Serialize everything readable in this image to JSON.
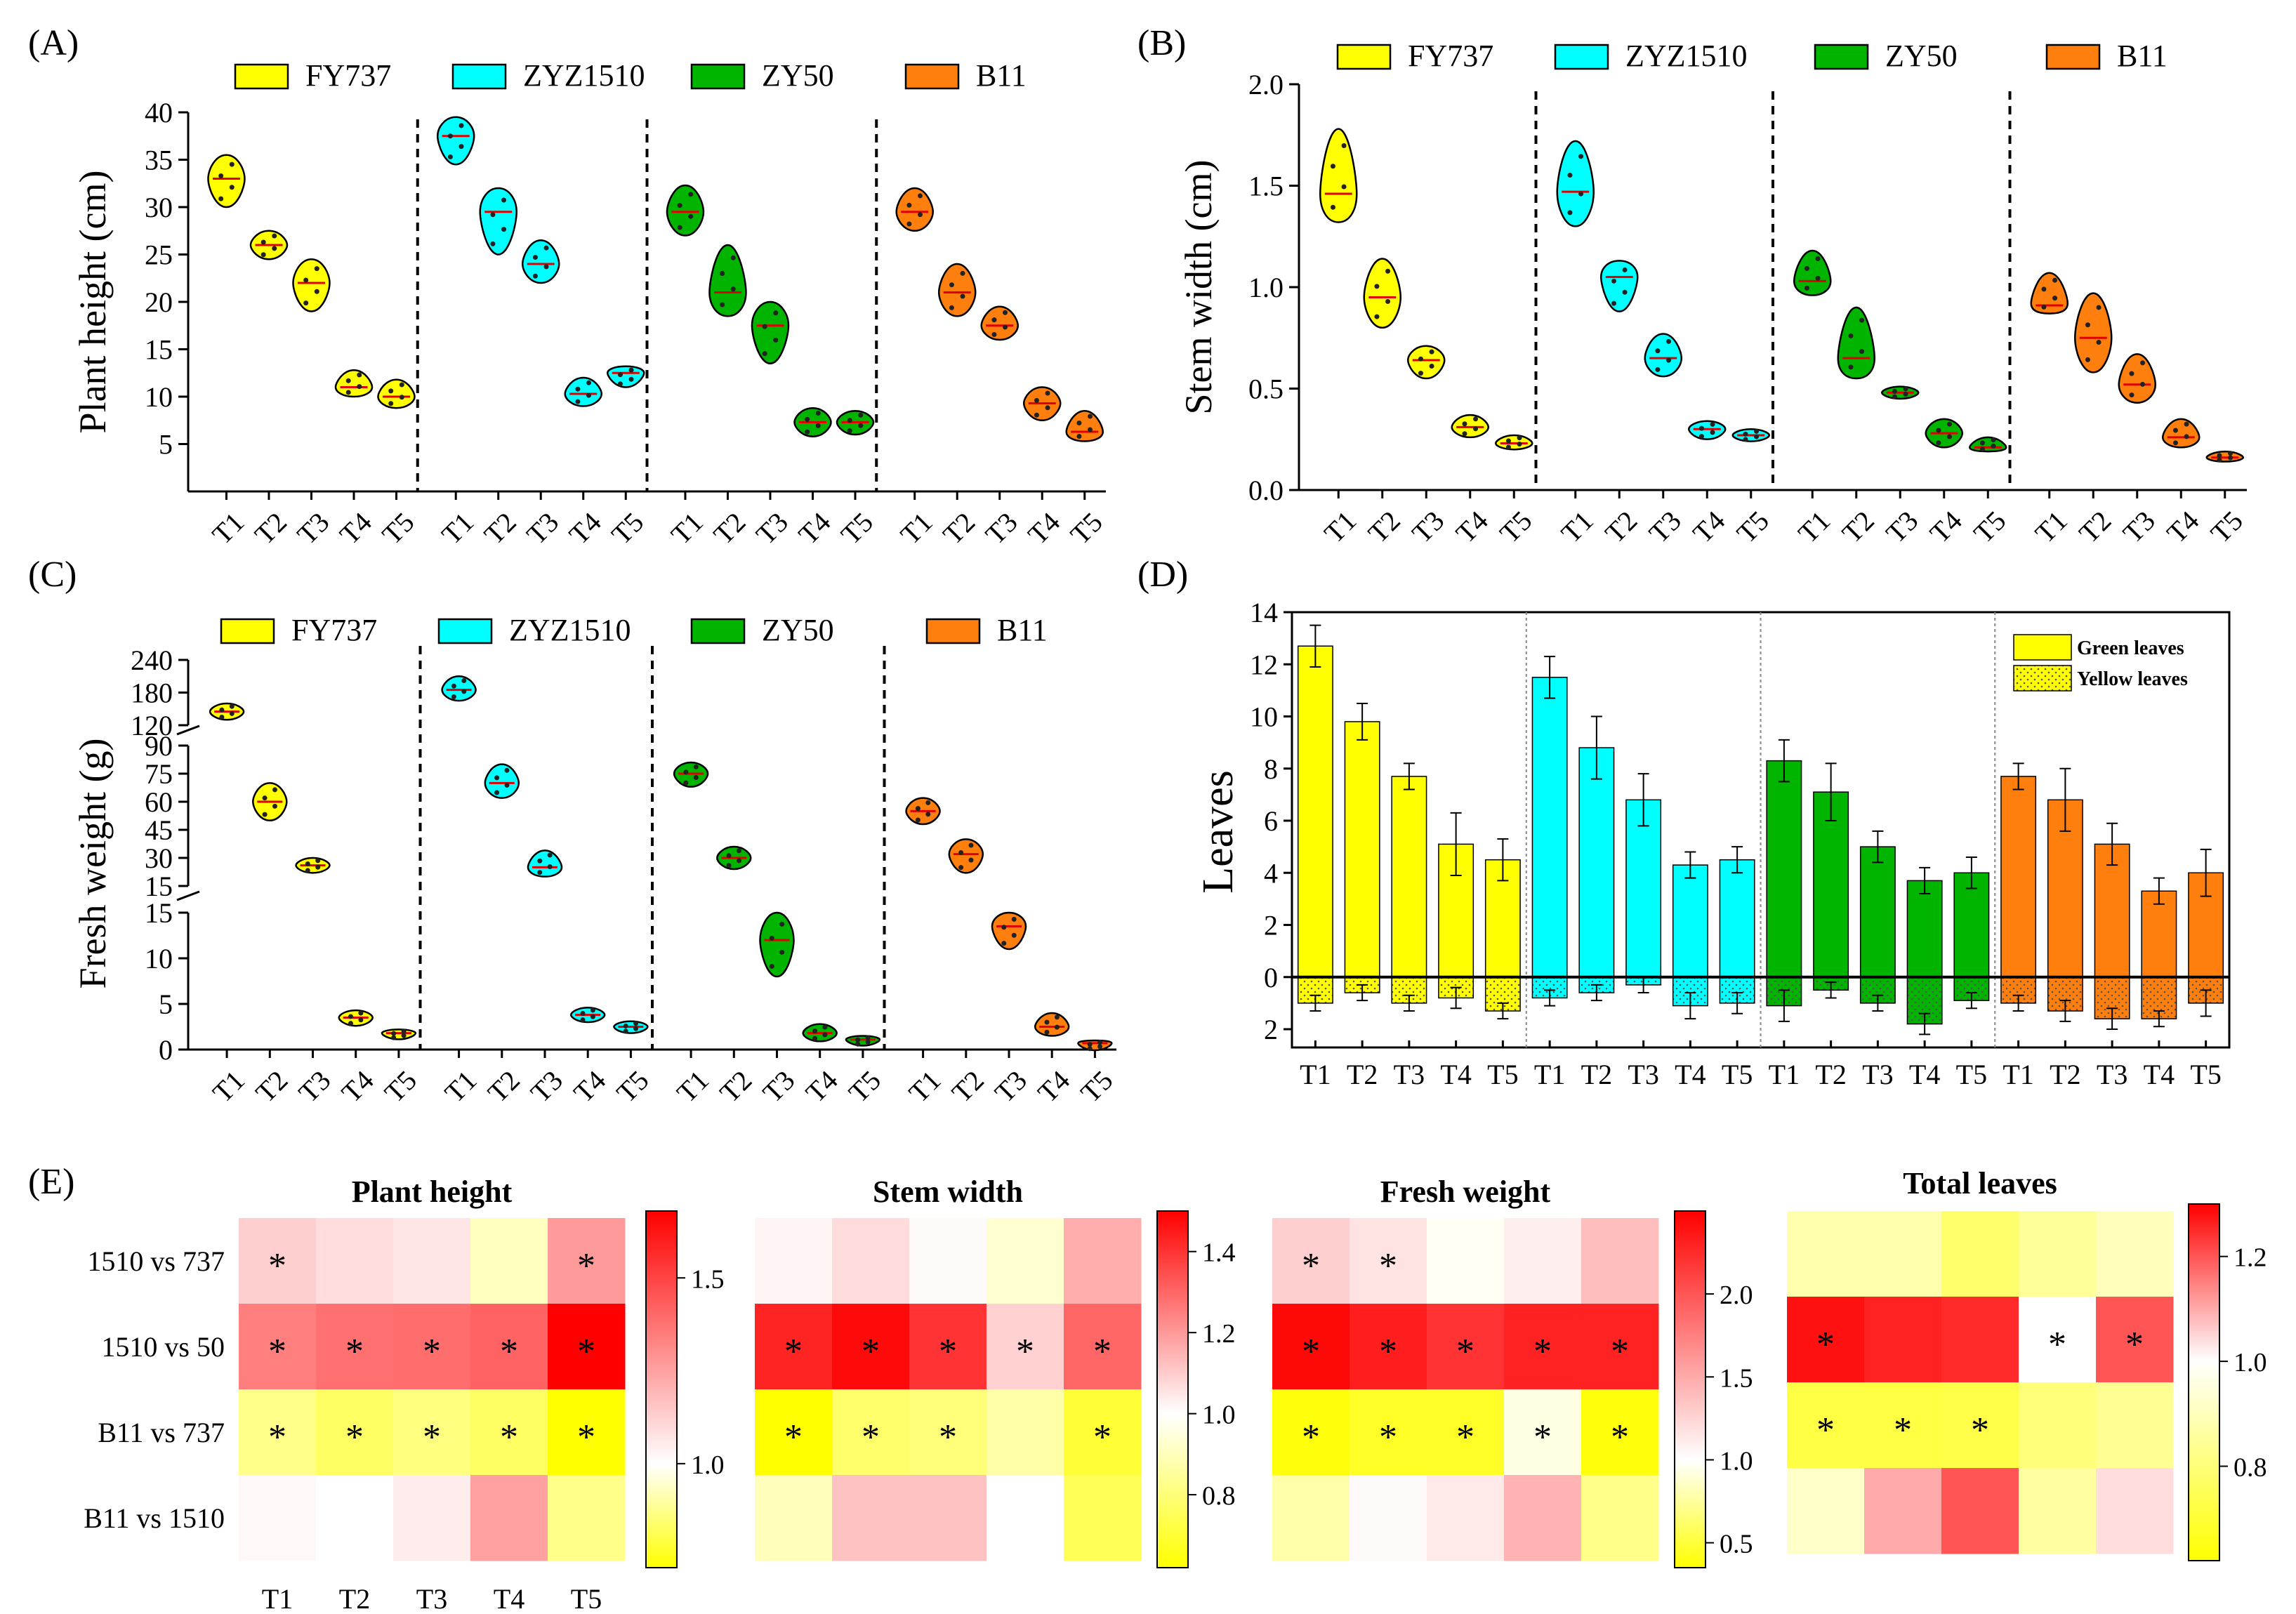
{
  "panel_labels": [
    "(A)",
    "(B)",
    "(C)",
    "(D)",
    "(E)"
  ],
  "colors": {
    "FY737": "#FFFF00",
    "ZYZ1510": "#00FFFF",
    "ZY50": "#00B400",
    "B11": "#FF7F0E",
    "heat_low": "#FFFF00",
    "heat_mid": "#FFFFFF",
    "heat_high": "#FF0000"
  },
  "chart_data": [
    {
      "id": "A",
      "type": "violin",
      "ylabel": "Plant height (cm)",
      "ylim": [
        0,
        40
      ],
      "yticks": [
        5,
        10,
        15,
        20,
        25,
        30,
        35,
        40
      ],
      "treatments": [
        "T1",
        "T2",
        "T3",
        "T4",
        "T5"
      ],
      "legend": [
        "FY737",
        "ZYZ1510",
        "ZY50",
        "B11"
      ],
      "series": [
        {
          "name": "FY737",
          "medians": [
            33,
            26,
            22,
            11,
            10
          ],
          "mins": [
            30,
            24.5,
            19,
            10,
            8.8
          ],
          "maxs": [
            35.5,
            27.5,
            24.5,
            12.8,
            11.8
          ]
        },
        {
          "name": "ZYZ1510",
          "medians": [
            37.5,
            29.5,
            24,
            10.3,
            12.5
          ],
          "mins": [
            34.5,
            25,
            22,
            9,
            11
          ],
          "maxs": [
            39.5,
            32,
            26.5,
            12,
            13.2
          ]
        },
        {
          "name": "ZY50",
          "medians": [
            29.5,
            21,
            17.5,
            7.3,
            7.3
          ],
          "mins": [
            27,
            18.5,
            13.5,
            5.8,
            6
          ],
          "maxs": [
            32.3,
            26,
            20,
            8.8,
            8.5
          ]
        },
        {
          "name": "B11",
          "medians": [
            29.5,
            21,
            17.5,
            9.3,
            6.3
          ],
          "mins": [
            27.5,
            18.5,
            16,
            7.5,
            5.3
          ],
          "maxs": [
            32,
            24,
            19.5,
            11,
            8.5
          ]
        }
      ]
    },
    {
      "id": "B",
      "type": "violin",
      "ylabel": "Stem width (cm)",
      "ylim": [
        0,
        2
      ],
      "yticks": [
        "0.0",
        "0.5",
        "1.0",
        "1.5",
        "2.0"
      ],
      "treatments": [
        "T1",
        "T2",
        "T3",
        "T4",
        "T5"
      ],
      "legend": [
        "FY737",
        "ZYZ1510",
        "ZY50",
        "B11"
      ],
      "series": [
        {
          "name": "FY737",
          "medians": [
            1.46,
            0.95,
            0.64,
            0.31,
            0.23
          ],
          "mins": [
            1.32,
            0.8,
            0.55,
            0.26,
            0.2
          ],
          "maxs": [
            1.78,
            1.14,
            0.71,
            0.37,
            0.27
          ]
        },
        {
          "name": "ZYZ1510",
          "medians": [
            1.47,
            1.05,
            0.65,
            0.3,
            0.27
          ],
          "mins": [
            1.3,
            0.88,
            0.56,
            0.25,
            0.24
          ],
          "maxs": [
            1.72,
            1.13,
            0.77,
            0.34,
            0.3
          ]
        },
        {
          "name": "ZY50",
          "medians": [
            1.03,
            0.65,
            0.48,
            0.28,
            0.21
          ],
          "mins": [
            0.96,
            0.55,
            0.45,
            0.21,
            0.19
          ],
          "maxs": [
            1.18,
            0.9,
            0.51,
            0.35,
            0.26
          ]
        },
        {
          "name": "B11",
          "medians": [
            0.91,
            0.75,
            0.52,
            0.26,
            0.16
          ],
          "mins": [
            0.87,
            0.58,
            0.43,
            0.21,
            0.14
          ],
          "maxs": [
            1.07,
            0.97,
            0.67,
            0.35,
            0.19
          ]
        }
      ]
    },
    {
      "id": "C",
      "type": "violin",
      "ylabel": "Fresh weight (g)",
      "broken_axis": true,
      "ylim_segments": [
        [
          0,
          15
        ],
        [
          15,
          90
        ],
        [
          120,
          240
        ]
      ],
      "yticks_segments": [
        [
          0,
          5,
          10,
          15
        ],
        [
          15,
          30,
          45,
          60,
          75,
          90
        ],
        [
          120,
          180,
          240
        ]
      ],
      "treatments": [
        "T1",
        "T2",
        "T3",
        "T4",
        "T5"
      ],
      "legend": [
        "FY737",
        "ZYZ1510",
        "ZY50",
        "B11"
      ],
      "series": [
        {
          "name": "FY737",
          "medians": [
            145,
            60,
            26,
            3.5,
            1.8
          ],
          "mins": [
            130,
            50,
            22,
            2.6,
            1.4
          ],
          "maxs": [
            160,
            70,
            30,
            4.3,
            2.2
          ]
        },
        {
          "name": "ZYZ1510",
          "medians": [
            185,
            70,
            25,
            3.8,
            2.5
          ],
          "mins": [
            165,
            62,
            20,
            3,
            1.8
          ],
          "maxs": [
            210,
            80,
            34,
            4.6,
            3.1
          ]
        },
        {
          "name": "ZY50",
          "medians": [
            75,
            30,
            12,
            1.8,
            1.1
          ],
          "mins": [
            68,
            24,
            8,
            0.9,
            0.7
          ],
          "maxs": [
            81,
            36,
            15,
            2.8,
            1.5
          ]
        },
        {
          "name": "B11",
          "medians": [
            55,
            32,
            13.5,
            2.5,
            0.7
          ],
          "mins": [
            48,
            22,
            11,
            1.5,
            0.4
          ],
          "maxs": [
            62,
            40,
            15,
            4,
            1
          ]
        }
      ]
    },
    {
      "id": "D",
      "type": "bar",
      "ylabel": "Leaves",
      "ylim": [
        -3,
        14
      ],
      "yticks_up": [
        0,
        2,
        4,
        6,
        8,
        10,
        12,
        14
      ],
      "yticks_down": [
        2
      ],
      "categories": [
        "T1",
        "T2",
        "T3",
        "T4",
        "T5"
      ],
      "legend": [
        "Green leaves",
        "Yellow leaves"
      ],
      "series": [
        {
          "name": "FY737",
          "green": [
            12.7,
            9.8,
            7.7,
            5.1,
            4.5
          ],
          "green_err": [
            0.8,
            0.7,
            0.5,
            1.2,
            0.8
          ],
          "yellow": [
            1.0,
            0.6,
            1.0,
            0.8,
            1.3
          ],
          "yellow_err": [
            0.3,
            0.3,
            0.3,
            0.4,
            0.3
          ]
        },
        {
          "name": "ZYZ1510",
          "green": [
            11.5,
            8.8,
            6.8,
            4.3,
            4.5
          ],
          "green_err": [
            0.8,
            1.2,
            1.0,
            0.5,
            0.5
          ],
          "yellow": [
            0.8,
            0.6,
            0.3,
            1.1,
            1.0
          ],
          "yellow_err": [
            0.3,
            0.3,
            0.3,
            0.5,
            0.4
          ]
        },
        {
          "name": "ZY50",
          "green": [
            8.3,
            7.1,
            5.0,
            3.7,
            4.0
          ],
          "green_err": [
            0.8,
            1.1,
            0.6,
            0.5,
            0.6
          ],
          "yellow": [
            1.1,
            0.5,
            1.0,
            1.8,
            0.9
          ],
          "yellow_err": [
            0.6,
            0.3,
            0.3,
            0.4,
            0.3
          ]
        },
        {
          "name": "B11",
          "green": [
            7.7,
            6.8,
            5.1,
            3.3,
            4.0
          ],
          "green_err": [
            0.5,
            1.2,
            0.8,
            0.5,
            0.9
          ],
          "yellow": [
            1.0,
            1.3,
            1.6,
            1.6,
            1.0
          ],
          "yellow_err": [
            0.3,
            0.4,
            0.4,
            0.3,
            0.5
          ]
        }
      ]
    },
    {
      "id": "E",
      "type": "heatmap",
      "row_labels": [
        "1510 vs 737",
        "1510 vs 50",
        "B11 vs 737",
        "B11 vs 1510"
      ],
      "col_labels": [
        "T1",
        "T2",
        "T3",
        "T4",
        "T5"
      ],
      "heatmaps": [
        {
          "title": "Plant height",
          "cbar_range": [
            0.72,
            1.68
          ],
          "cbar_ticks": [
            "1.0",
            "1.5"
          ],
          "values": [
            [
              1.13,
              1.09,
              1.07,
              0.93,
              1.27
            ],
            [
              1.34,
              1.38,
              1.39,
              1.42,
              1.7
            ],
            [
              0.87,
              0.83,
              0.86,
              0.83,
              0.72
            ],
            [
              1.02,
              1.0,
              1.05,
              1.25,
              0.87
            ]
          ],
          "significant": [
            [
              1,
              0,
              0,
              0,
              1
            ],
            [
              1,
              1,
              1,
              1,
              1
            ],
            [
              1,
              1,
              1,
              1,
              1
            ],
            [
              0,
              0,
              0,
              0,
              0
            ]
          ]
        },
        {
          "title": "Stem width",
          "cbar_range": [
            0.62,
            1.5
          ],
          "cbar_ticks": [
            "0.8",
            "1.0",
            "1.2",
            "1.4"
          ],
          "values": [
            [
              1.02,
              1.07,
              1.01,
              0.93,
              1.16
            ],
            [
              1.43,
              1.48,
              1.4,
              1.09,
              1.3
            ],
            [
              0.62,
              0.78,
              0.8,
              0.87,
              0.7
            ],
            [
              0.9,
              1.12,
              1.12,
              1.0,
              0.75
            ]
          ],
          "significant": [
            [
              0,
              0,
              0,
              0,
              0
            ],
            [
              1,
              1,
              1,
              1,
              1
            ],
            [
              1,
              1,
              1,
              0,
              1
            ],
            [
              0,
              0,
              0,
              0,
              0
            ]
          ]
        },
        {
          "title": "Fresh weight",
          "cbar_range": [
            0.35,
            2.5
          ],
          "cbar_ticks": [
            "0.5",
            "1.0",
            "1.5",
            "2.0"
          ],
          "values": [
            [
              1.28,
              1.17,
              0.97,
              1.1,
              1.38
            ],
            [
              2.45,
              2.33,
              2.2,
              2.3,
              2.3
            ],
            [
              0.38,
              0.45,
              0.45,
              0.93,
              0.38
            ],
            [
              0.78,
              1.03,
              1.13,
              1.45,
              0.7
            ]
          ],
          "significant": [
            [
              1,
              1,
              0,
              0,
              0
            ],
            [
              1,
              1,
              1,
              1,
              1
            ],
            [
              1,
              1,
              1,
              1,
              1
            ],
            [
              0,
              0,
              0,
              0,
              0
            ]
          ]
        },
        {
          "title": "Total leaves",
          "cbar_range": [
            0.62,
            1.3
          ],
          "cbar_ticks": [
            "0.8",
            "1.0",
            "1.2"
          ],
          "values": [
            [
              0.88,
              0.88,
              0.78,
              0.85,
              0.9
            ],
            [
              1.28,
              1.26,
              1.25,
              1.0,
              1.2
            ],
            [
              0.72,
              0.72,
              0.73,
              0.8,
              0.84
            ],
            [
              0.92,
              1.1,
              1.2,
              0.86,
              1.04
            ]
          ],
          "significant": [
            [
              0,
              0,
              0,
              0,
              0
            ],
            [
              1,
              0,
              0,
              1,
              1
            ],
            [
              1,
              1,
              1,
              0,
              0
            ],
            [
              0,
              0,
              0,
              0,
              0
            ]
          ]
        }
      ]
    }
  ]
}
